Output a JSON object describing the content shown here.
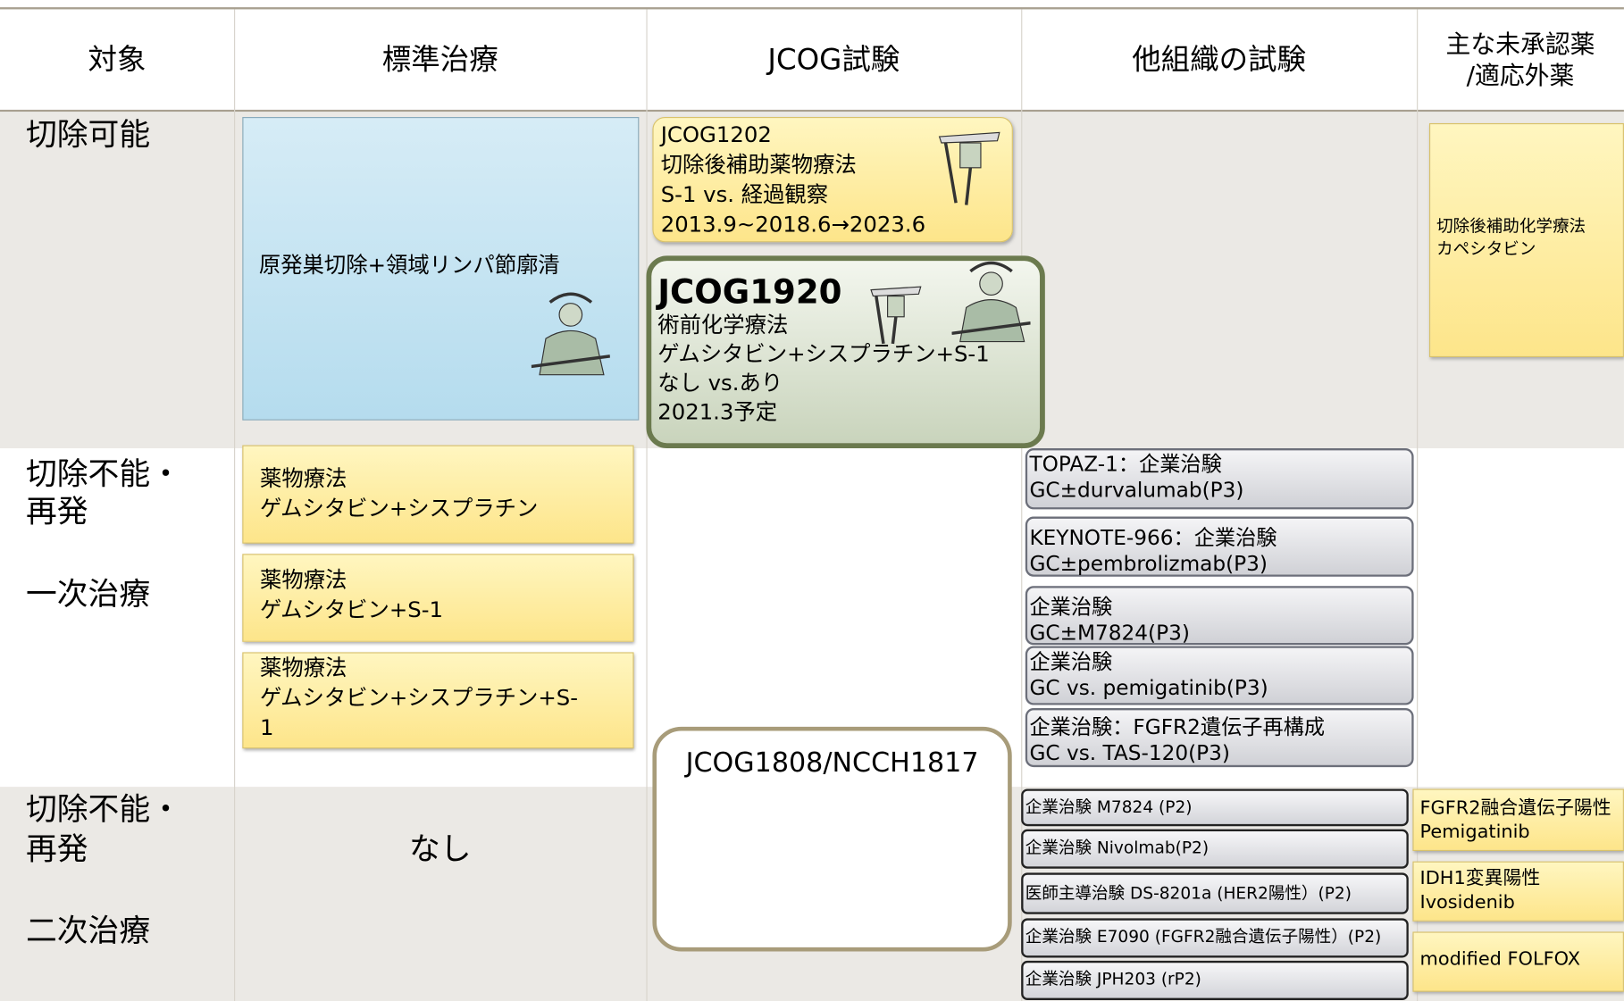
{
  "header": {
    "columns": [
      [
        "対象"
      ],
      [
        "標準治療"
      ],
      [
        "JCOG試験"
      ],
      [
        "他組織の試験"
      ],
      [
        "主な未承認薬",
        "/適応外薬"
      ]
    ]
  },
  "rows": [
    {
      "labels": [
        "切除可能"
      ]
    },
    {
      "labels": [
        "切除不能・",
        "再発",
        "一次治療"
      ]
    },
    {
      "labels": [
        "切除不能・",
        "再発",
        "二次治療"
      ]
    }
  ],
  "standard": [
    [
      "原発巣切除+領域リンパ節廓清"
    ],
    [
      "薬物療法",
      "ゲムシタビン+シスプラチン"
    ],
    [
      "薬物療法",
      "ゲムシタビン+S-1"
    ],
    [
      "薬物療法",
      "ゲムシタビン+シスプラチン+S-",
      "1"
    ],
    [
      "なし"
    ]
  ],
  "jcog": [
    [
      "JCOG1202",
      "切除後補助薬物療法",
      "S-1 vs. 経過観察",
      "2013.9~2018.6→2023.6"
    ],
    [
      "JCOG1920",
      "術前化学療法",
      "ゲムシタビン+シスプラチン+S-1",
      "なし vs.あり",
      "2021.3予定"
    ],
    [
      "JCOG1808/NCCH1817"
    ]
  ],
  "other_first": [
    [
      "TOPAZ-1：企業治験",
      "GC±durvalumab(P3)"
    ],
    [
      "KEYNOTE-966：企業治験",
      "GC±pembrolizmab(P3)"
    ],
    [
      "企業治験",
      "GC±M7824(P3)"
    ],
    [
      "企業治験",
      "GC vs. pemigatinib(P3)"
    ],
    [
      "企業治験：FGFR2遺伝子再構成",
      "GC vs. TAS-120(P3)"
    ]
  ],
  "other_second": [
    "企業治験 M7824 (P2)",
    "企業治験 Nivolmab(P2)",
    "医師主導治験 DS-8201a (HER2陽性）(P2)",
    "企業治験 E7090 (FGFR2融合遺伝子陽性）(P2)",
    "企業治験 JPH203 (rP2)"
  ],
  "unapproved": [
    [
      "切除後補助化学療法",
      "カペシタビン"
    ],
    [
      "FGFR2融合遺伝子陽性",
      "Pemigatinib"
    ],
    [
      "IDH1変異陽性",
      "Ivosidenib"
    ],
    [
      "modified FOLFOX"
    ]
  ]
}
